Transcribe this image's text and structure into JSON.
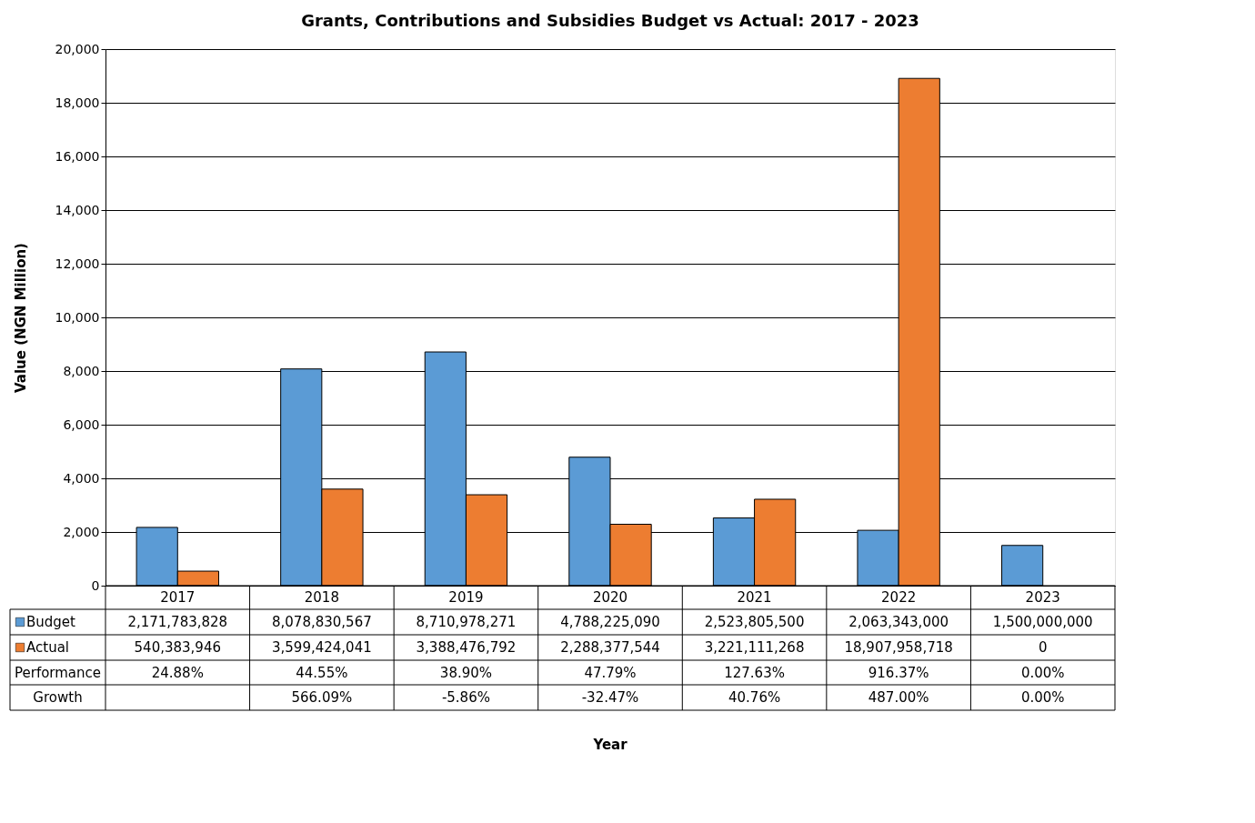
{
  "chart_data": {
    "type": "bar",
    "title": "Grants, Contributions and Subsidies Budget vs Actual: 2017 - 2023",
    "ylabel": "Value (NGN  Million)",
    "categories": [
      "2017",
      "2018",
      "2019",
      "2020",
      "2021",
      "2022",
      "2023"
    ],
    "series": [
      {
        "name": "Budget",
        "color": "#5b9bd5",
        "values": [
          2171.783828,
          8078.830567,
          8710.978271,
          4788.22509,
          2523.8055,
          2063.343,
          1500.0
        ]
      },
      {
        "name": "Actual",
        "color": "#ed7d31",
        "values": [
          540.383946,
          3599.424041,
          3388.476792,
          2288.377544,
          3221.111268,
          18907.958718,
          0
        ]
      }
    ],
    "annotations": [
      "2,171,783,828",
      "8,078,830,567",
      "8,710,978,271",
      "4,788,225,090",
      "2,523,805,500",
      "2,063,343,000",
      "1,500,000,000",
      "540,383,946",
      "3,599,424,041",
      "3,388,476,792",
      "2,288,377,544",
      "3,221,111,268",
      "18,907,958,718",
      "0",
      "Performance",
      "24.88%",
      "44.55%",
      "38.90%",
      "47.79%",
      "127.63%",
      "916.37%",
      "0.00%",
      "Growth",
      "566.09%",
      "-5.86%",
      "-32.47%",
      "40.76%",
      "487.00%",
      "0.00%",
      "Year"
    ],
    "ylim": [
      0,
      20000
    ],
    "yticks": [
      0,
      {
        "value": 2000,
        "label": "2,000"
      },
      {
        "value": 4000,
        "label": "4,000"
      },
      {
        "value": 6000,
        "label": "6,000"
      },
      {
        "value": 8000,
        "label": "8,000"
      },
      {
        "value": 10000,
        "label": "10,000"
      },
      {
        "value": 12000,
        "label": "12,000"
      },
      {
        "value": 14000,
        "label": "14,000"
      },
      {
        "value": 16000,
        "label": "16,000"
      },
      {
        "value": 18000,
        "label": "18,000"
      },
      {
        "value": 20000,
        "label": "20,000"
      }
    ],
    "grid": "y",
    "legend": "bottom"
  }
}
